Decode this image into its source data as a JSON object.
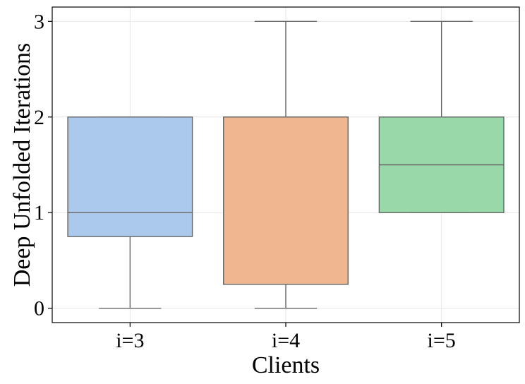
{
  "chart_data": {
    "type": "box",
    "title": "",
    "xlabel": "Clients",
    "ylabel": "Deep Unfolded Iterations",
    "categories": [
      "i=3",
      "i=4",
      "i=5"
    ],
    "series": [
      {
        "category": "i=3",
        "whisker_low": 0,
        "q1": 0.75,
        "median": 1.0,
        "q3": 2.0,
        "whisker_high": 2.0,
        "color": "#abc9ec"
      },
      {
        "category": "i=4",
        "whisker_low": 0,
        "q1": 0.25,
        "median": 2.0,
        "q3": 2.0,
        "whisker_high": 3.0,
        "color": "#f0b690"
      },
      {
        "category": "i=5",
        "whisker_low": 1.0,
        "q1": 1.0,
        "median": 1.5,
        "q3": 2.0,
        "whisker_high": 3.0,
        "color": "#99d9a9"
      }
    ],
    "ylim": [
      -0.15,
      3.15
    ],
    "yticks": [
      "0",
      "1",
      "2",
      "3"
    ],
    "grid": true,
    "line_color": "#666666",
    "grid_color": "#e6e6e6",
    "legend": "none"
  }
}
